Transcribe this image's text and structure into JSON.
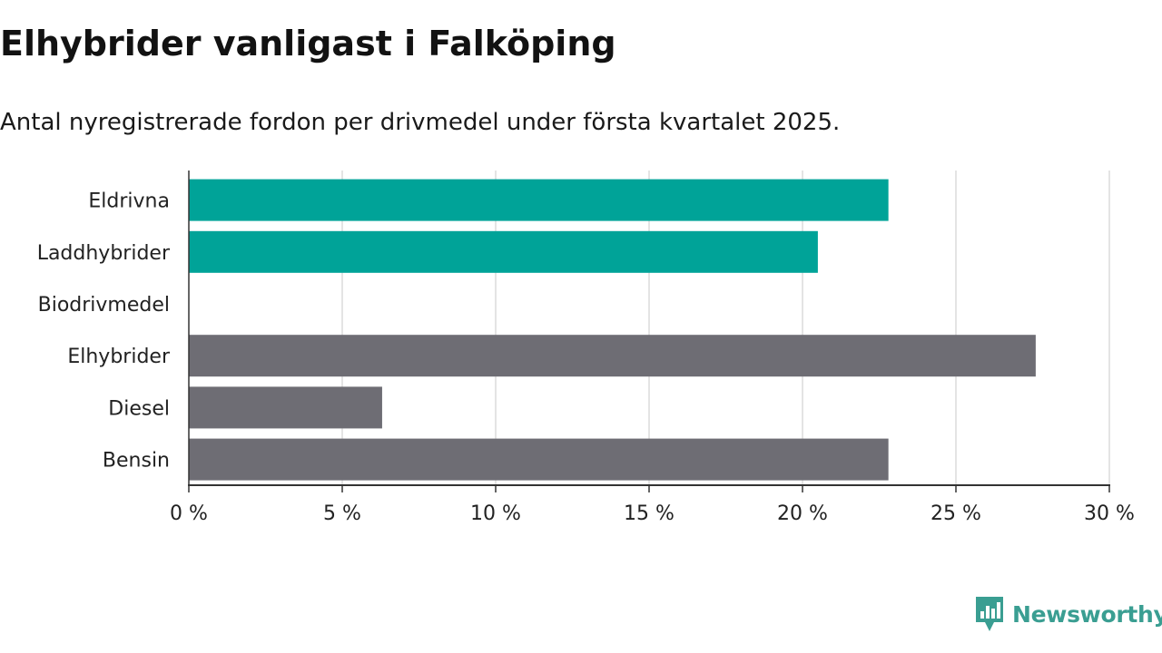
{
  "header": {
    "title": "Elhybrider vanligast i Falköping",
    "subtitle": "Antal nyregistrerade fordon per drivmedel under första kvartalet 2025."
  },
  "brand": {
    "name": "Newsworthy",
    "color": "#3a9e92"
  },
  "colors": {
    "highlight": "#00a398",
    "neutral": "#6e6d74",
    "grid": "#dcdcdc",
    "axis": "#333333"
  },
  "chart_data": {
    "type": "bar",
    "orientation": "horizontal",
    "categories": [
      "Eldrivna",
      "Laddhybrider",
      "Biodrivmedel",
      "Elhybrider",
      "Diesel",
      "Bensin"
    ],
    "values": [
      22.8,
      20.5,
      0,
      27.6,
      6.3,
      22.8
    ],
    "bar_colors": [
      "#00a398",
      "#00a398",
      "#6e6d74",
      "#6e6d74",
      "#6e6d74",
      "#6e6d74"
    ],
    "xlim": [
      0,
      30
    ],
    "xticks": [
      0,
      5,
      10,
      15,
      20,
      25,
      30
    ],
    "xtick_labels": [
      "0 %",
      "5 %",
      "10 %",
      "15 %",
      "20 %",
      "25 %",
      "30 %"
    ],
    "grid": true,
    "legend": false
  }
}
